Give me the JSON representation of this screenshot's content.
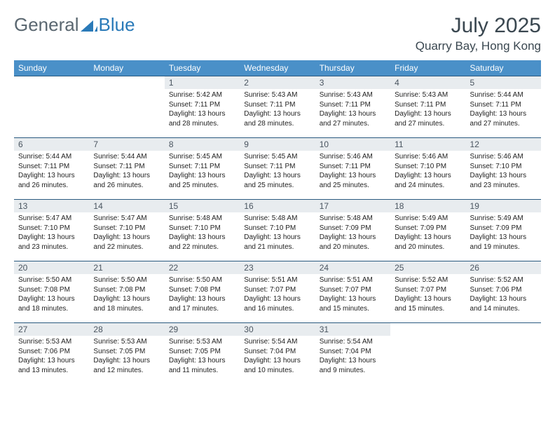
{
  "logo": {
    "text1": "General",
    "text2": "Blue"
  },
  "header": {
    "month_title": "July 2025",
    "location": "Quarry Bay, Hong Kong"
  },
  "colors": {
    "header_bg": "#4a90c8",
    "header_text": "#ffffff",
    "daynum_bg": "#e8ecef",
    "border": "#2a5a80",
    "logo_gray": "#5a6770",
    "logo_blue": "#2a7ab8",
    "title_color": "#3a4750"
  },
  "day_headers": [
    "Sunday",
    "Monday",
    "Tuesday",
    "Wednesday",
    "Thursday",
    "Friday",
    "Saturday"
  ],
  "weeks": [
    [
      null,
      null,
      {
        "num": "1",
        "sunrise": "5:42 AM",
        "sunset": "7:11 PM",
        "daylight": "13 hours and 28 minutes."
      },
      {
        "num": "2",
        "sunrise": "5:43 AM",
        "sunset": "7:11 PM",
        "daylight": "13 hours and 28 minutes."
      },
      {
        "num": "3",
        "sunrise": "5:43 AM",
        "sunset": "7:11 PM",
        "daylight": "13 hours and 27 minutes."
      },
      {
        "num": "4",
        "sunrise": "5:43 AM",
        "sunset": "7:11 PM",
        "daylight": "13 hours and 27 minutes."
      },
      {
        "num": "5",
        "sunrise": "5:44 AM",
        "sunset": "7:11 PM",
        "daylight": "13 hours and 27 minutes."
      }
    ],
    [
      {
        "num": "6",
        "sunrise": "5:44 AM",
        "sunset": "7:11 PM",
        "daylight": "13 hours and 26 minutes."
      },
      {
        "num": "7",
        "sunrise": "5:44 AM",
        "sunset": "7:11 PM",
        "daylight": "13 hours and 26 minutes."
      },
      {
        "num": "8",
        "sunrise": "5:45 AM",
        "sunset": "7:11 PM",
        "daylight": "13 hours and 25 minutes."
      },
      {
        "num": "9",
        "sunrise": "5:45 AM",
        "sunset": "7:11 PM",
        "daylight": "13 hours and 25 minutes."
      },
      {
        "num": "10",
        "sunrise": "5:46 AM",
        "sunset": "7:11 PM",
        "daylight": "13 hours and 25 minutes."
      },
      {
        "num": "11",
        "sunrise": "5:46 AM",
        "sunset": "7:10 PM",
        "daylight": "13 hours and 24 minutes."
      },
      {
        "num": "12",
        "sunrise": "5:46 AM",
        "sunset": "7:10 PM",
        "daylight": "13 hours and 23 minutes."
      }
    ],
    [
      {
        "num": "13",
        "sunrise": "5:47 AM",
        "sunset": "7:10 PM",
        "daylight": "13 hours and 23 minutes."
      },
      {
        "num": "14",
        "sunrise": "5:47 AM",
        "sunset": "7:10 PM",
        "daylight": "13 hours and 22 minutes."
      },
      {
        "num": "15",
        "sunrise": "5:48 AM",
        "sunset": "7:10 PM",
        "daylight": "13 hours and 22 minutes."
      },
      {
        "num": "16",
        "sunrise": "5:48 AM",
        "sunset": "7:10 PM",
        "daylight": "13 hours and 21 minutes."
      },
      {
        "num": "17",
        "sunrise": "5:48 AM",
        "sunset": "7:09 PM",
        "daylight": "13 hours and 20 minutes."
      },
      {
        "num": "18",
        "sunrise": "5:49 AM",
        "sunset": "7:09 PM",
        "daylight": "13 hours and 20 minutes."
      },
      {
        "num": "19",
        "sunrise": "5:49 AM",
        "sunset": "7:09 PM",
        "daylight": "13 hours and 19 minutes."
      }
    ],
    [
      {
        "num": "20",
        "sunrise": "5:50 AM",
        "sunset": "7:08 PM",
        "daylight": "13 hours and 18 minutes."
      },
      {
        "num": "21",
        "sunrise": "5:50 AM",
        "sunset": "7:08 PM",
        "daylight": "13 hours and 18 minutes."
      },
      {
        "num": "22",
        "sunrise": "5:50 AM",
        "sunset": "7:08 PM",
        "daylight": "13 hours and 17 minutes."
      },
      {
        "num": "23",
        "sunrise": "5:51 AM",
        "sunset": "7:07 PM",
        "daylight": "13 hours and 16 minutes."
      },
      {
        "num": "24",
        "sunrise": "5:51 AM",
        "sunset": "7:07 PM",
        "daylight": "13 hours and 15 minutes."
      },
      {
        "num": "25",
        "sunrise": "5:52 AM",
        "sunset": "7:07 PM",
        "daylight": "13 hours and 15 minutes."
      },
      {
        "num": "26",
        "sunrise": "5:52 AM",
        "sunset": "7:06 PM",
        "daylight": "13 hours and 14 minutes."
      }
    ],
    [
      {
        "num": "27",
        "sunrise": "5:53 AM",
        "sunset": "7:06 PM",
        "daylight": "13 hours and 13 minutes."
      },
      {
        "num": "28",
        "sunrise": "5:53 AM",
        "sunset": "7:05 PM",
        "daylight": "13 hours and 12 minutes."
      },
      {
        "num": "29",
        "sunrise": "5:53 AM",
        "sunset": "7:05 PM",
        "daylight": "13 hours and 11 minutes."
      },
      {
        "num": "30",
        "sunrise": "5:54 AM",
        "sunset": "7:04 PM",
        "daylight": "13 hours and 10 minutes."
      },
      {
        "num": "31",
        "sunrise": "5:54 AM",
        "sunset": "7:04 PM",
        "daylight": "13 hours and 9 minutes."
      },
      null,
      null
    ]
  ],
  "labels": {
    "sunrise": "Sunrise:",
    "sunset": "Sunset:",
    "daylight": "Daylight:"
  }
}
